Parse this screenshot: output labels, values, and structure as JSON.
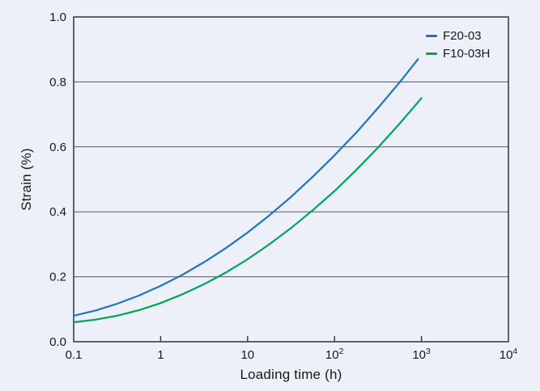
{
  "figure": {
    "background": "#edf0f9",
    "text_color": "#191919",
    "axis_color": "#3d3d47",
    "grid_color": "#55555f"
  },
  "chart_data": {
    "type": "line",
    "title": "",
    "xlabel": "Loading time (h)",
    "ylabel": "Strain (%)",
    "x_scale": "log",
    "xlim": [
      0.1,
      10000
    ],
    "ylim": [
      0.0,
      1.0
    ],
    "x_ticks": [
      {
        "value": 0.1,
        "label": "0.1",
        "tick_mark": false
      },
      {
        "value": 1,
        "label": "1",
        "tick_mark": true
      },
      {
        "value": 10,
        "label": "10",
        "tick_mark": true
      },
      {
        "value": 100,
        "label": "10^2",
        "tick_mark": true
      },
      {
        "value": 1000,
        "label": "10^3",
        "tick_mark": true
      },
      {
        "value": 10000,
        "label": "10^4",
        "tick_mark": false
      }
    ],
    "y_ticks": [
      {
        "value": 0.0,
        "label": "0.0"
      },
      {
        "value": 0.2,
        "label": "0.2"
      },
      {
        "value": 0.4,
        "label": "0.4"
      },
      {
        "value": 0.6,
        "label": "0.6"
      },
      {
        "value": 0.8,
        "label": "0.8"
      },
      {
        "value": 1.0,
        "label": "1.0"
      }
    ],
    "gridlines_y": [
      0.2,
      0.4,
      0.6,
      0.8
    ],
    "grid": true,
    "legend_position": "top-right",
    "series": [
      {
        "name": "F20-03",
        "color": "#1c76bc",
        "points": [
          [
            0.1,
            0.08
          ],
          [
            0.178,
            0.096
          ],
          [
            0.316,
            0.117
          ],
          [
            0.562,
            0.142
          ],
          [
            1,
            0.172
          ],
          [
            1.78,
            0.206
          ],
          [
            3.16,
            0.245
          ],
          [
            5.62,
            0.288
          ],
          [
            10,
            0.336
          ],
          [
            17.8,
            0.389
          ],
          [
            31.6,
            0.446
          ],
          [
            56.2,
            0.508
          ],
          [
            100,
            0.574
          ],
          [
            178,
            0.644
          ],
          [
            316,
            0.72
          ],
          [
            562,
            0.799
          ],
          [
            912,
            0.87
          ]
        ]
      },
      {
        "name": "F10-03H",
        "color": "#00a45a",
        "points": [
          [
            0.1,
            0.06
          ],
          [
            0.178,
            0.068
          ],
          [
            0.316,
            0.08
          ],
          [
            0.562,
            0.097
          ],
          [
            1,
            0.119
          ],
          [
            1.78,
            0.146
          ],
          [
            3.16,
            0.177
          ],
          [
            5.62,
            0.213
          ],
          [
            10,
            0.254
          ],
          [
            17.8,
            0.3
          ],
          [
            31.6,
            0.35
          ],
          [
            56.2,
            0.405
          ],
          [
            100,
            0.464
          ],
          [
            178,
            0.529
          ],
          [
            316,
            0.598
          ],
          [
            562,
            0.672
          ],
          [
            1000,
            0.75
          ]
        ]
      }
    ]
  }
}
